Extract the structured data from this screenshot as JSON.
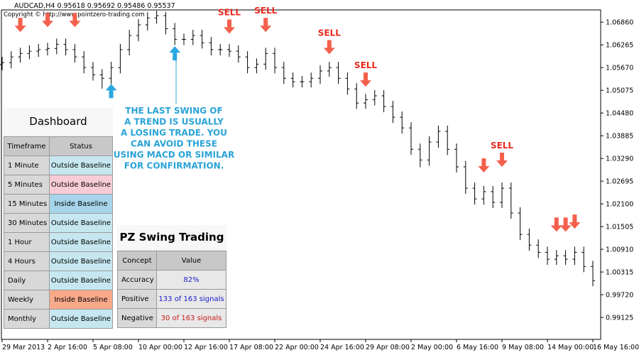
{
  "header": {
    "symbol": "AUDCAD,H4  0.95618 0.95692 0.95486 0.95537",
    "copyright": "Copyright © http://www.pointzero-trading.com"
  },
  "chart_data": {
    "type": "ohlc",
    "color": "#000000",
    "categories": [
      "29 Mar 2013",
      null,
      null,
      null,
      null,
      "2 Apr 16:00",
      null,
      null,
      null,
      null,
      "5 Apr 08:00",
      null,
      null,
      null,
      null,
      "10 Apr 00:00",
      null,
      null,
      null,
      null,
      "12 Apr 16:00",
      null,
      null,
      null,
      null,
      "17 Apr 08:00",
      null,
      null,
      null,
      null,
      "22 Apr 00:00",
      null,
      null,
      null,
      null,
      "24 Apr 16:00",
      null,
      null,
      null,
      null,
      "29 Apr 08:00",
      null,
      null,
      null,
      null,
      "2 May 00:00",
      null,
      null,
      null,
      null,
      "6 May 16:00",
      null,
      null,
      null,
      null,
      "9 May 08:00",
      null,
      null,
      null,
      null,
      "14 May 00:00",
      null,
      null,
      null,
      null,
      "16 May 16:00"
    ],
    "open": [
      1.0575,
      1.058,
      1.0595,
      1.0604,
      1.061,
      1.0614,
      1.0617,
      1.0628,
      1.0614,
      1.0595,
      1.0567,
      1.0548,
      1.0539,
      1.0567,
      1.0614,
      1.0651,
      1.0679,
      1.0697,
      1.0703,
      1.0669,
      1.0641,
      1.0641,
      1.0651,
      1.0632,
      1.0614,
      1.0614,
      1.061,
      1.0595,
      1.0567,
      1.0576,
      1.0604,
      1.0567,
      1.0539,
      1.053,
      1.053,
      1.0539,
      1.0558,
      1.0567,
      1.0539,
      1.0511,
      1.0474,
      1.0483,
      1.0493,
      1.0465,
      1.0437,
      1.0409,
      1.0353,
      1.0325,
      1.0372,
      1.04,
      1.0353,
      1.0307,
      1.0251,
      1.0223,
      1.0242,
      1.0214,
      1.0251,
      1.0186,
      1.013,
      1.0102,
      1.0083,
      1.0065,
      1.0074,
      1.0065,
      1.0083,
      1.0046
    ],
    "high": [
      1.0595,
      1.061,
      1.0619,
      1.0625,
      1.0629,
      1.0632,
      1.0643,
      1.0643,
      1.0629,
      1.061,
      1.0582,
      1.0563,
      1.0582,
      1.0629,
      1.0666,
      1.0694,
      1.0712,
      1.0716,
      1.0713,
      1.0684,
      1.0656,
      1.0666,
      1.0666,
      1.0647,
      1.0629,
      1.0629,
      1.0625,
      1.061,
      1.0591,
      1.0619,
      1.0619,
      1.0582,
      1.0554,
      1.0545,
      1.0554,
      1.0573,
      1.0582,
      1.0582,
      1.0554,
      1.0526,
      1.0498,
      1.0508,
      1.0508,
      1.048,
      1.0452,
      1.0424,
      1.0368,
      1.0387,
      1.0415,
      1.0415,
      1.0368,
      1.0322,
      1.0266,
      1.0257,
      1.0257,
      1.0266,
      1.0266,
      1.0201,
      1.0145,
      1.0117,
      1.0098,
      1.0089,
      1.0089,
      1.0098,
      1.0098,
      1.0061
    ],
    "low": [
      1.056,
      1.0565,
      1.058,
      1.0589,
      1.0595,
      1.0599,
      1.0602,
      1.0599,
      1.058,
      1.0552,
      1.0533,
      1.0512,
      1.0524,
      1.0552,
      1.0599,
      1.0636,
      1.0664,
      1.0682,
      1.0654,
      1.0626,
      1.0626,
      1.0626,
      1.0617,
      1.0599,
      1.0599,
      1.0595,
      1.058,
      1.0552,
      1.0552,
      1.0561,
      1.0552,
      1.0524,
      1.0515,
      1.0515,
      1.0515,
      1.0524,
      1.0543,
      1.0524,
      1.0496,
      1.0459,
      1.0459,
      1.0468,
      1.045,
      1.0422,
      1.0394,
      1.0338,
      1.0306,
      1.031,
      1.0357,
      1.0338,
      1.0292,
      1.0236,
      1.0208,
      1.0208,
      1.0199,
      1.0199,
      1.0171,
      1.0115,
      1.0087,
      1.0068,
      1.005,
      1.005,
      1.005,
      1.005,
      1.0031,
      0.9994
    ],
    "close": [
      1.058,
      1.0595,
      1.0604,
      1.061,
      1.0614,
      1.0617,
      1.0628,
      1.0614,
      1.0595,
      1.0567,
      1.0548,
      1.0539,
      1.0567,
      1.0614,
      1.0651,
      1.0679,
      1.0697,
      1.0703,
      1.0669,
      1.0641,
      1.0641,
      1.0651,
      1.0632,
      1.0614,
      1.0614,
      1.061,
      1.0595,
      1.0567,
      1.0576,
      1.0604,
      1.0567,
      1.0539,
      1.053,
      1.053,
      1.0539,
      1.0558,
      1.0567,
      1.0539,
      1.0511,
      1.0474,
      1.0483,
      1.0493,
      1.0465,
      1.0437,
      1.0409,
      1.0353,
      1.0325,
      1.0372,
      1.04,
      1.0353,
      1.0307,
      1.0251,
      1.0223,
      1.0242,
      1.0214,
      1.0251,
      1.0186,
      1.013,
      1.0102,
      1.0083,
      1.0065,
      1.0074,
      1.0065,
      1.0083,
      1.0046,
      1.0009
    ],
    "ylim": [
      0.9855,
      1.0718
    ],
    "yticks": [
      {
        "value": 1.0686,
        "label": "1.06860"
      },
      1.06265,
      {
        "value": 1.0567,
        "label": "1.05670"
      },
      1.05075,
      {
        "value": 1.0448,
        "label": "1.04480"
      },
      1.03885,
      {
        "value": 1.0329,
        "label": "1.03290"
      },
      1.02695,
      {
        "value": 1.021,
        "label": "1.02100"
      },
      1.01505,
      {
        "value": 1.0091,
        "label": "1.00910"
      },
      1.00315,
      {
        "value": 0.9972,
        "label": "0.99720"
      },
      0.99125
    ],
    "sell_color": "#f4604c",
    "buy_color": "#2aa8e0",
    "signal_label_color": "#e8291f",
    "signals": [
      {
        "side": "sell",
        "bar": 2,
        "price": 1.066
      },
      {
        "side": "sell",
        "bar": 5,
        "price": 1.0673
      },
      {
        "side": "sell",
        "bar": 8,
        "price": 1.0673
      },
      {
        "side": "buy",
        "bar": 12,
        "price": 1.0524
      },
      {
        "side": "buy",
        "bar": 19,
        "price": 1.0623
      },
      {
        "side": "sell",
        "bar": 25,
        "price": 1.0656,
        "label": "SELL"
      },
      {
        "side": "sell",
        "bar": 29,
        "price": 1.066,
        "label": "SELL"
      },
      {
        "side": "sell",
        "bar": 36,
        "price": 1.0602,
        "label": "SELL"
      },
      {
        "side": "sell",
        "bar": 40,
        "price": 1.0517,
        "label": "SELL"
      },
      {
        "side": "sell",
        "bar": 53,
        "price": 1.0292
      },
      {
        "side": "sell",
        "bar": 55,
        "price": 1.0307,
        "label": "SELL"
      },
      {
        "side": "sell",
        "bar": 61,
        "price": 1.0137
      },
      {
        "side": "sell",
        "bar": 62,
        "price": 1.0137
      },
      {
        "side": "sell",
        "bar": 63,
        "price": 1.0145
      }
    ],
    "annotation": {
      "color": "#29a3d6",
      "lines": [
        "THE LAST SWING OF",
        "A TREND IS USUALLY",
        "A LOSING TRADE. YOU",
        "CAN AVOID THESE",
        "USING MACD OR SIMILAR",
        "FOR CONFIRMATION."
      ]
    }
  },
  "dashboard": {
    "title": "Dashboard",
    "headers": [
      "Timeframe",
      "Status"
    ],
    "rows": [
      {
        "timeframe": "1 Minute",
        "status": "Outside Baseline",
        "color": "#c6e7f0"
      },
      {
        "timeframe": "5 Minutes",
        "status": "Outside Baseline",
        "color": "#f8ccd6"
      },
      {
        "timeframe": "15 Minutes",
        "status": "Inside Baseline",
        "color": "#a6d4ea"
      },
      {
        "timeframe": "30 Minutes",
        "status": "Outside Baseline",
        "color": "#c6e7f0"
      },
      {
        "timeframe": "1 Hour",
        "status": "Outside Baseline",
        "color": "#c6e7f0"
      },
      {
        "timeframe": "4 Hours",
        "status": "Outside Baseline",
        "color": "#c6e7f0"
      },
      {
        "timeframe": "Daily",
        "status": "Outside Baseline",
        "color": "#c6e7f0"
      },
      {
        "timeframe": "Weekly",
        "status": "Inside Baseline",
        "color": "#f8a98a"
      },
      {
        "timeframe": "Monthly",
        "status": "Outside Baseline",
        "color": "#c6e7f0"
      }
    ]
  },
  "stats": {
    "title": "PZ Swing Trading",
    "headers": [
      "Concept",
      "Value"
    ],
    "rows": [
      {
        "concept": "Accuracy",
        "value": "82%",
        "color": "#1a1acc"
      },
      {
        "concept": "Positive",
        "value": "133 of 163 signals",
        "color": "#1a1acc"
      },
      {
        "concept": "Negative",
        "value": "30 of 163 signals",
        "color": "#cc1a1a"
      }
    ]
  }
}
